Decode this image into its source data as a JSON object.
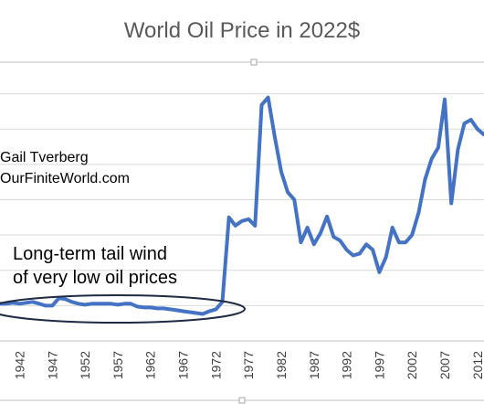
{
  "chart_data": {
    "type": "line",
    "title": "World Oil Price in 2022$",
    "xlabel": "",
    "ylabel": "",
    "x_tick_labels": [
      "1942",
      "1947",
      "1952",
      "1957",
      "1962",
      "1967",
      "1972",
      "1977",
      "1982",
      "1987",
      "1992",
      "1997",
      "2002",
      "2007",
      "2012"
    ],
    "xlim": [
      1939,
      2013
    ],
    "ylim": [
      0,
      150
    ],
    "grid": true,
    "series": [
      {
        "color": "#4472C4",
        "x": [
          1939,
          1940,
          1941,
          1942,
          1943,
          1944,
          1945,
          1946,
          1947,
          1948,
          1949,
          1950,
          1951,
          1952,
          1953,
          1954,
          1955,
          1956,
          1957,
          1958,
          1959,
          1960,
          1961,
          1962,
          1963,
          1964,
          1965,
          1966,
          1967,
          1968,
          1969,
          1970,
          1971,
          1972,
          1973,
          1974,
          1975,
          1976,
          1977,
          1978,
          1979,
          1980,
          1981,
          1982,
          1983,
          1984,
          1985,
          1986,
          1987,
          1988,
          1989,
          1990,
          1991,
          1992,
          1993,
          1994,
          1995,
          1996,
          1997,
          1998,
          1999,
          2000,
          2001,
          2002,
          2003,
          2004,
          2005,
          2006,
          2007,
          2008,
          2009,
          2010,
          2011,
          2012,
          2013
        ],
        "values": [
          20,
          20,
          20.5,
          20,
          20.5,
          21,
          20,
          19,
          19,
          23,
          22.5,
          21,
          20,
          19.5,
          20,
          20,
          20,
          20,
          19.5,
          20,
          20,
          18.5,
          18,
          18,
          17.5,
          17.5,
          17,
          16.5,
          16,
          15.5,
          15,
          14.5,
          16,
          17,
          21,
          66.5,
          62,
          64.5,
          65.5,
          62,
          127,
          131,
          110,
          91,
          80,
          76,
          53,
          61,
          52,
          58,
          67,
          56,
          54,
          49,
          46,
          47,
          52,
          49,
          37,
          45,
          61,
          53,
          53,
          57,
          69,
          87,
          98,
          104,
          130,
          74,
          103,
          117,
          119,
          114,
          111
        ]
      }
    ],
    "annotations": [
      {
        "text": "Gail Tverberg"
      },
      {
        "text": "OurFiniteWorld.com"
      },
      {
        "text": "Long-term tail wind"
      },
      {
        "text": "of very low oil prices"
      }
    ],
    "colors": {
      "line": "#4472C4",
      "grid": "#D9D9D9",
      "title": "#595959",
      "ellipse": "#1F2A44"
    }
  }
}
